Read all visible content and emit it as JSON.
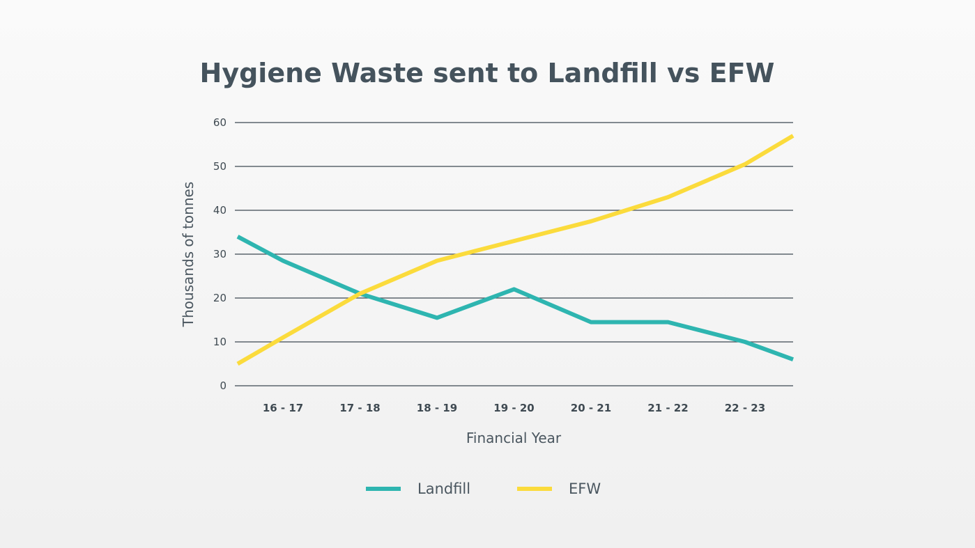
{
  "chart_data": {
    "type": "line",
    "title": "Hygiene Waste sent to Landfill vs EFW",
    "xlabel": "Financial Year",
    "ylabel": "Thousands of tonnes",
    "categories": [
      "16 - 17",
      "17 - 18",
      "18 - 19",
      "19 - 20",
      "20 - 21",
      "21 - 22",
      "22 - 23"
    ],
    "ylim": [
      0,
      60
    ],
    "yticks": [
      0,
      10,
      20,
      30,
      40,
      50,
      60
    ],
    "grid": true,
    "legend_position": "bottom",
    "series": [
      {
        "name": "Landfill",
        "color": "#2eb5b0",
        "start": 34,
        "values": [
          28.5,
          21,
          15.5,
          22,
          14.5,
          14.5,
          10
        ],
        "end": 6
      },
      {
        "name": "EFW",
        "color": "#fbdb3c",
        "start": 5,
        "values": [
          11,
          21,
          28.5,
          33,
          37.5,
          43,
          50.5
        ],
        "end": 57
      }
    ]
  }
}
